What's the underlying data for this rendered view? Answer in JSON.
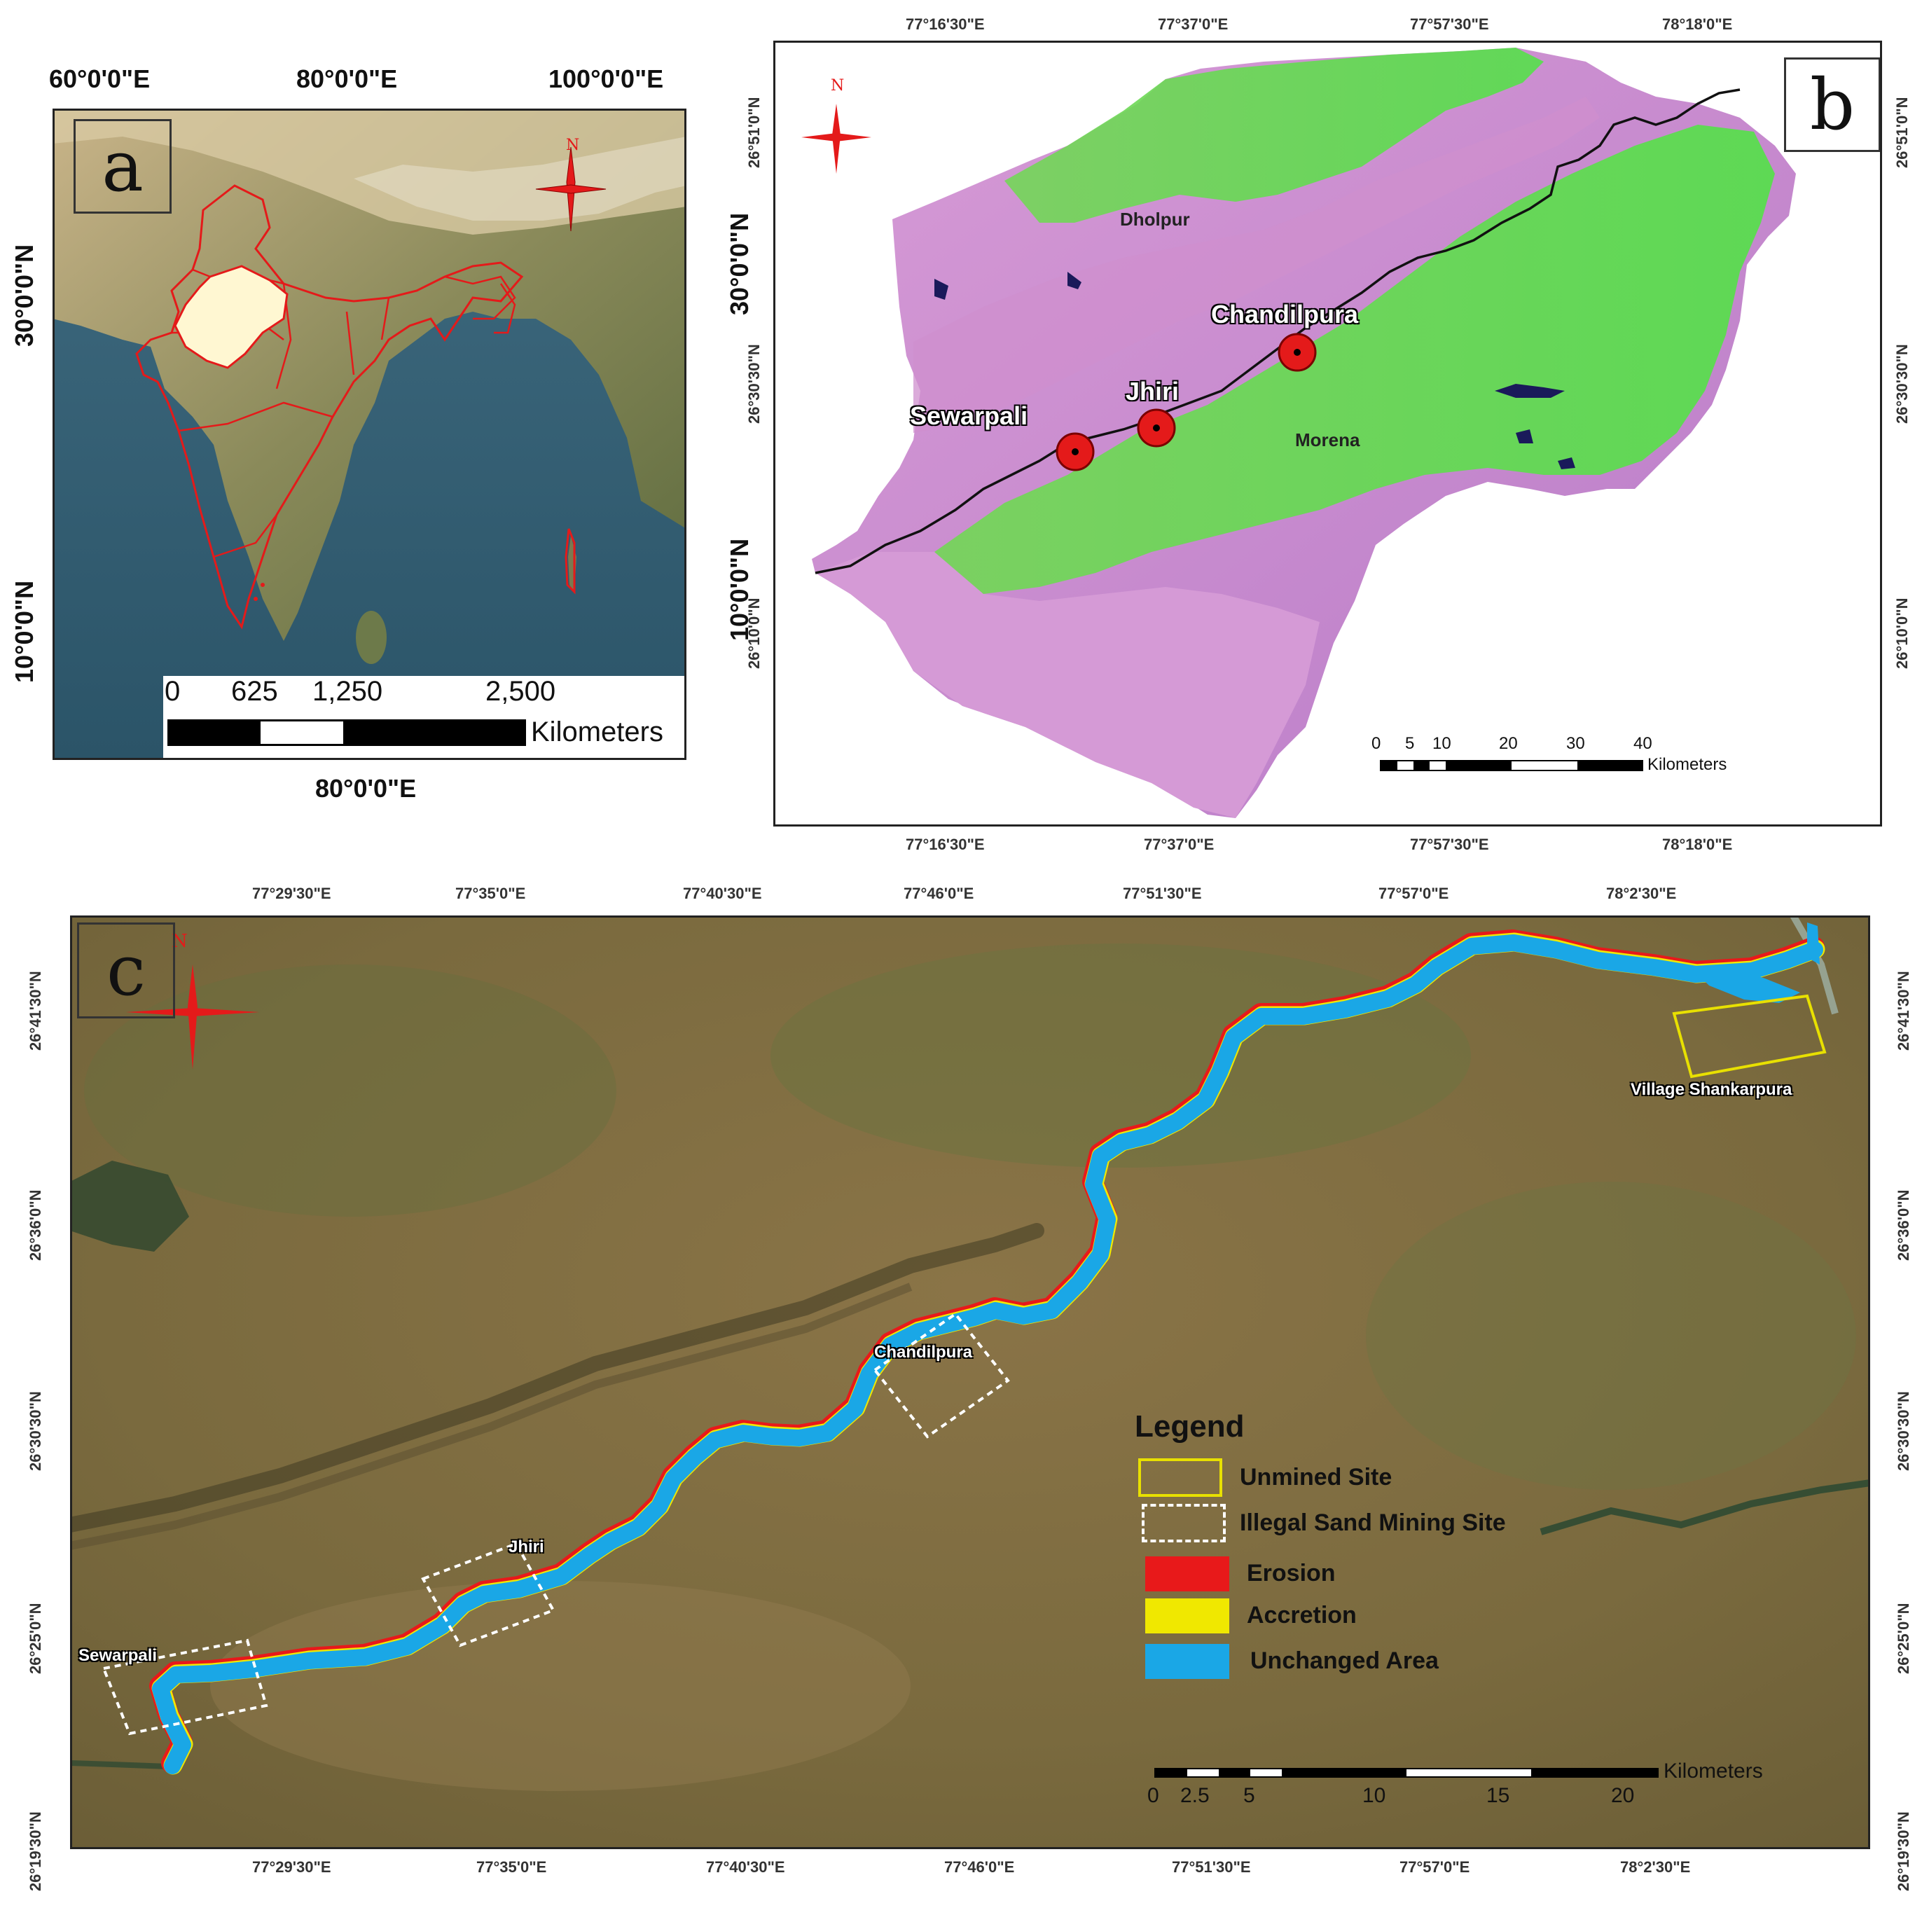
{
  "panel_a": {
    "label": "a",
    "top_ticks": [
      "60°0'0\"E",
      "80°0'0\"E",
      "100°0'0\"E"
    ],
    "bottom_ticks": [
      "80°0'0\"E"
    ],
    "left_ticks": [
      "30°0'0\"N",
      "10°0'0\"N"
    ],
    "right_ticks": [
      "30°0'0\"N",
      "10°0'0\"N"
    ],
    "north_letter": "N",
    "scale": {
      "values": [
        "0",
        "625",
        "1,250",
        "2,500"
      ],
      "unit": "Kilometers"
    }
  },
  "panel_b": {
    "label": "b",
    "top_ticks": [
      "77°16'30\"E",
      "77°37'0\"E",
      "77°57'30\"E",
      "78°18'0\"E"
    ],
    "bottom_ticks": [
      "77°16'30\"E",
      "77°37'0\"E",
      "77°57'30\"E",
      "78°18'0\"E"
    ],
    "left_ticks": [
      "26°51'0\"N",
      "26°30'30\"N",
      "26°10'0\"N"
    ],
    "right_ticks": [
      "26°51'0\"N",
      "26°30'30\"N",
      "26°10'0\"N"
    ],
    "north_letter": "N",
    "places": {
      "dholpur": "Dholpur",
      "morena": "Morena",
      "chandilpura": "Chandilpura",
      "jhiri": "Jhiri",
      "sewarpali": "Sewarpali"
    },
    "scale": {
      "values": [
        "0",
        "5",
        "10",
        "20",
        "30",
        "40"
      ],
      "unit": "Kilometers"
    }
  },
  "panel_c": {
    "label": "c",
    "top_ticks": [
      "77°29'30\"E",
      "77°35'0\"E",
      "77°40'30\"E",
      "77°46'0\"E",
      "77°51'30\"E",
      "77°57'0\"E",
      "78°2'30\"E"
    ],
    "bottom_ticks": [
      "77°29'30\"E",
      "77°35'0\"E",
      "77°40'30\"E",
      "77°46'0\"E",
      "77°51'30\"E",
      "77°57'0\"E",
      "78°2'30\"E"
    ],
    "left_ticks": [
      "26°41'30\"N",
      "26°36'0\"N",
      "26°30'30\"N",
      "26°25'0\"N",
      "26°19'30\"N"
    ],
    "right_ticks": [
      "26°41'30\"N",
      "26°36'0\"N",
      "26°30'30\"N",
      "26°25'0\"N",
      "26°19'30\"N"
    ],
    "north_letter": "N",
    "places": {
      "shankarpura": "Village Shankarpura",
      "chandilpura": "Chandilpura",
      "jhiri": "Jhiri",
      "sewarpali": "Sewarpali"
    },
    "legend": {
      "title": "Legend",
      "unmined": "Unmined Site",
      "illegal": "Illegal Sand Mining Site",
      "erosion": "Erosion",
      "accretion": "Accretion",
      "unchanged": "Unchanged Area"
    },
    "colors": {
      "unmined": "#e8e000",
      "erosion": "#e8191a",
      "accretion": "#f0e800",
      "unchanged": "#1aa7e6"
    },
    "scale": {
      "values": [
        "0",
        "2.5",
        "5",
        "10",
        "15",
        "20"
      ],
      "unit": "Kilometers"
    }
  }
}
